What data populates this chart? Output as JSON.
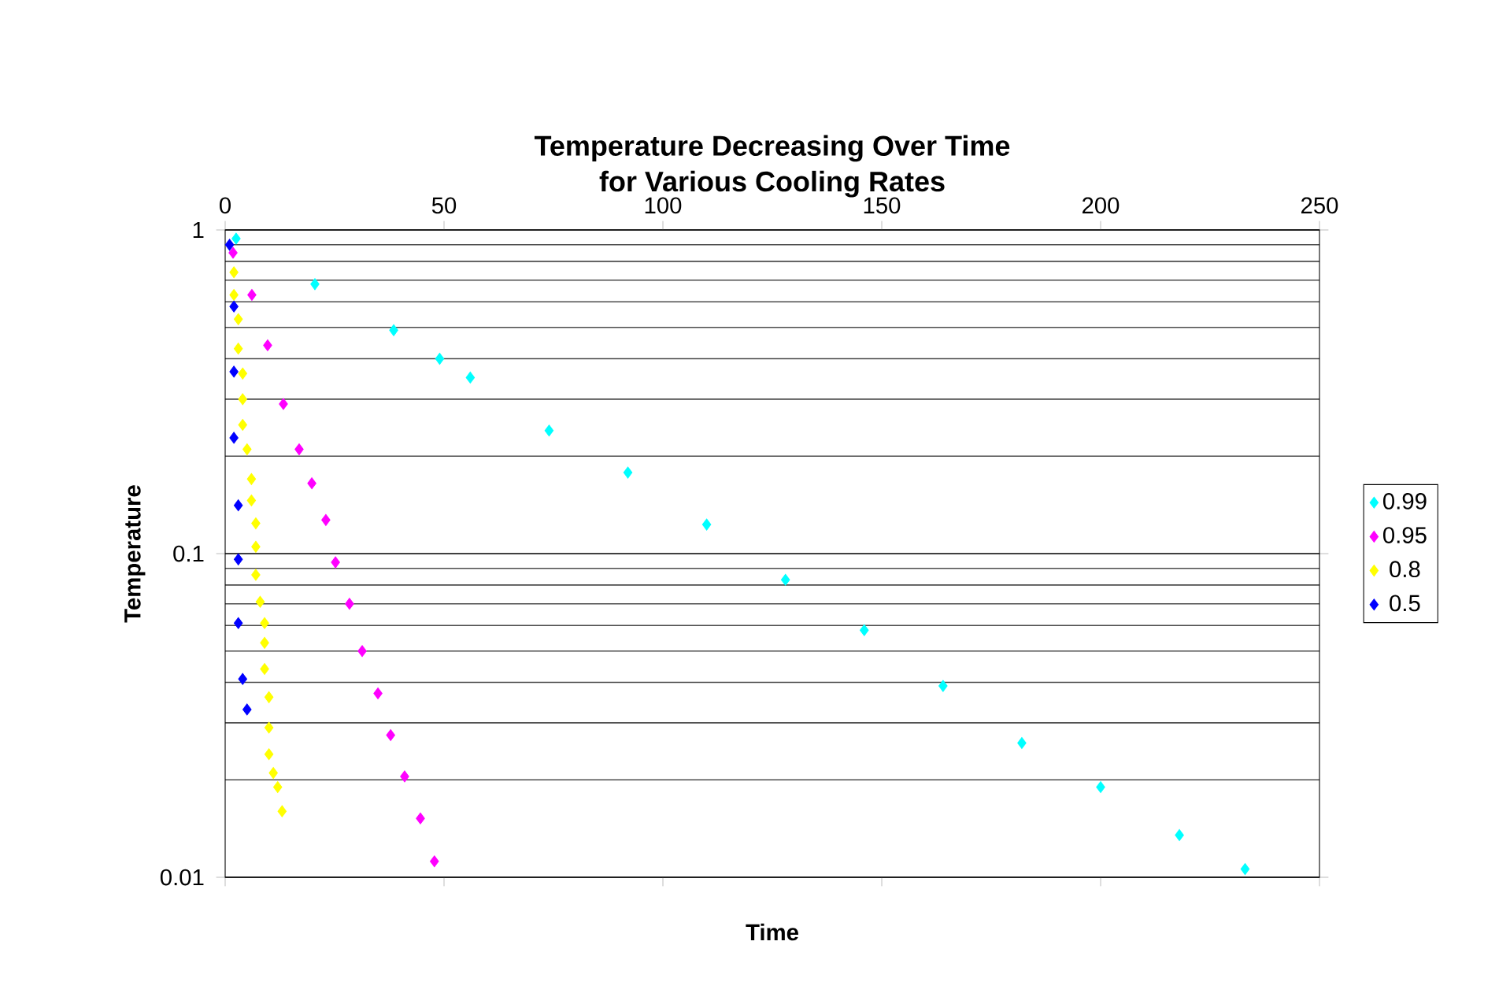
{
  "chart_data": {
    "type": "scatter",
    "title": "Temperature Decreasing Over Time\nfor Various Cooling Rates",
    "xlabel": "Time",
    "ylabel": "Temperature",
    "xlim": [
      0,
      250
    ],
    "xticks": [
      0,
      50,
      100,
      150,
      200,
      250
    ],
    "ylim": [
      0.01,
      1
    ],
    "yticks": [
      0.01,
      0.1,
      1
    ],
    "log": "y",
    "grid": "y",
    "legend": "right",
    "marker": "diamond",
    "series": [
      {
        "name": "0.99",
        "color": "#00ffff",
        "x": [
          2.5,
          20.5,
          38.5,
          49,
          56,
          74,
          92,
          110,
          128,
          146,
          164,
          182,
          200,
          218,
          233
        ],
        "values": [
          0.94,
          0.68,
          0.49,
          0.4,
          0.35,
          0.24,
          0.178,
          0.123,
          0.083,
          0.058,
          0.039,
          0.026,
          0.019,
          0.0135,
          0.0106
        ]
      },
      {
        "name": "0.95",
        "color": "#ff00ff",
        "x": [
          1.8,
          6.1,
          9.7,
          13.3,
          16.9,
          19.8,
          23,
          25.2,
          28.4,
          31.3,
          34.9,
          37.8,
          41,
          44.6,
          47.8
        ],
        "values": [
          0.85,
          0.63,
          0.44,
          0.29,
          0.21,
          0.165,
          0.127,
          0.094,
          0.07,
          0.05,
          0.037,
          0.0275,
          0.0205,
          0.0152,
          0.0112
        ]
      },
      {
        "name": "0.8",
        "color": "#ffff00",
        "x": [
          2,
          2,
          3,
          3,
          4,
          4,
          4,
          5,
          6,
          6,
          7,
          7,
          7,
          8,
          9,
          9,
          9,
          10,
          10,
          10,
          11,
          12,
          13
        ],
        "values": [
          0.74,
          0.63,
          0.53,
          0.43,
          0.36,
          0.3,
          0.25,
          0.21,
          0.17,
          0.146,
          0.124,
          0.105,
          0.086,
          0.071,
          0.061,
          0.053,
          0.044,
          0.036,
          0.029,
          0.024,
          0.021,
          0.019,
          0.016
        ]
      },
      {
        "name": "0.5",
        "color": "#0000ff",
        "x": [
          1,
          2,
          2,
          2,
          3,
          3,
          3,
          4,
          5
        ],
        "values": [
          0.9,
          0.58,
          0.365,
          0.228,
          0.141,
          0.096,
          0.061,
          0.041,
          0.033
        ]
      }
    ]
  }
}
